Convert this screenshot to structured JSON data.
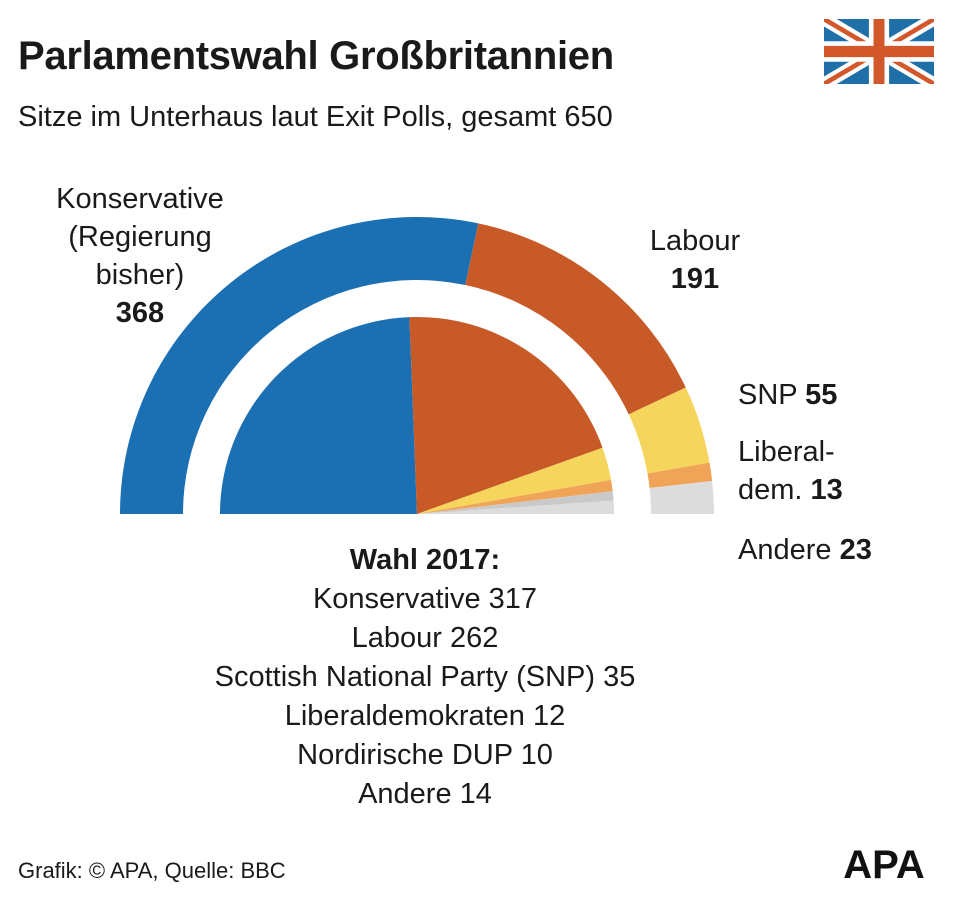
{
  "header": {
    "title": "Parlamentswahl Großbritannien",
    "subtitle": "Sitze im Unterhaus laut Exit Polls, gesamt 650"
  },
  "labels": {
    "konservative_lines": [
      "Konservative",
      "(Regierung",
      "bisher)"
    ],
    "konservative_value": "368",
    "labour_name": "Labour",
    "labour_value": "191",
    "snp_name": "SNP",
    "snp_value": "55",
    "lib_line1": "Liberal-",
    "lib_line2": "dem.",
    "lib_value": "13",
    "andere_name": "Andere",
    "andere_value": "23"
  },
  "previous": {
    "title": "Wahl 2017:",
    "lines": [
      "Konservative 317",
      "Labour 262",
      "Scottish National Party (SNP) 35",
      "Liberaldemokraten 12",
      "Nordirische DUP 10",
      "Andere 14"
    ]
  },
  "footer": {
    "source": "Grafik: © APA, Quelle: BBC",
    "logo_text": "APA"
  },
  "chart_data": [
    {
      "type": "pie",
      "variant": "half-donut",
      "series": [
        {
          "name": "Exit Polls",
          "categories": [
            "Konservative",
            "Labour",
            "SNP",
            "Liberaldemokraten",
            "Andere"
          ],
          "values": [
            368,
            191,
            55,
            13,
            23
          ]
        }
      ],
      "total": 650,
      "colors": [
        "#1b6fb3",
        "#c75a27",
        "#f6d55c",
        "#f0a458",
        "#dcdcdc"
      ]
    },
    {
      "type": "pie",
      "variant": "half-pie",
      "title": "Wahl 2017:",
      "series": [
        {
          "name": "Wahl 2017",
          "categories": [
            "Konservative",
            "Labour",
            "Scottish National Party (SNP)",
            "Liberaldemokraten",
            "Nordirische DUP",
            "Andere"
          ],
          "values": [
            317,
            262,
            35,
            12,
            10,
            14
          ]
        }
      ],
      "total": 650,
      "colors": [
        "#1b6fb3",
        "#c75a27",
        "#f6d55c",
        "#f0a458",
        "#c9c9c9",
        "#dcdcdc"
      ]
    }
  ]
}
